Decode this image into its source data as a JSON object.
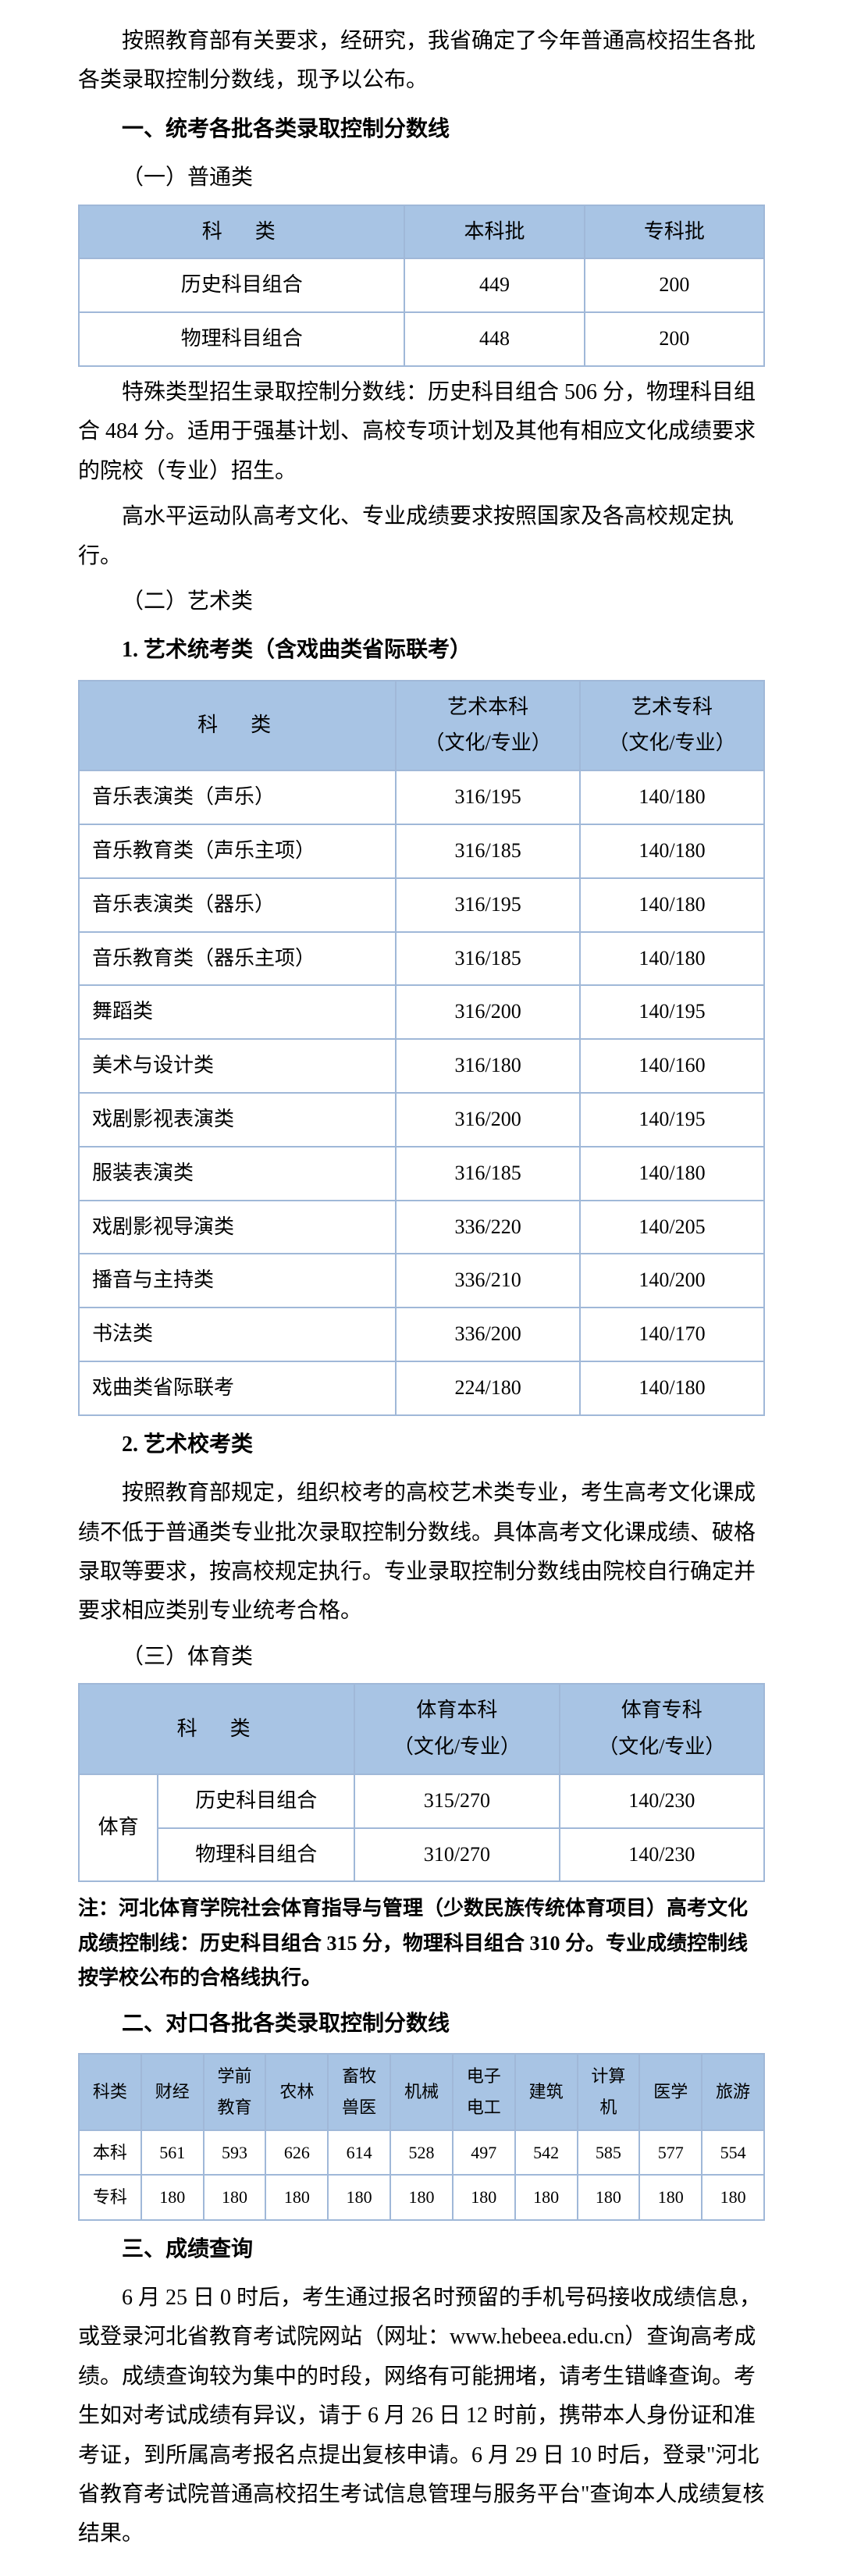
{
  "intro": "按照教育部有关要求，经研究，我省确定了今年普通高校招生各批各类录取控制分数线，现予以公布。",
  "h1": "一、统考各批各类录取控制分数线",
  "s1_1": "（一）普通类",
  "t1": {
    "h": [
      "科　类",
      "本科批",
      "专科批"
    ],
    "r": [
      [
        "历史科目组合",
        "449",
        "200"
      ],
      [
        "物理科目组合",
        "448",
        "200"
      ]
    ]
  },
  "p1_1": "特殊类型招生录取控制分数线：历史科目组合 506 分，物理科目组合 484 分。适用于强基计划、高校专项计划及其他有相应文化成绩要求的院校（专业）招生。",
  "p1_2": "高水平运动队高考文化、专业成绩要求按照国家及各高校规定执行。",
  "s1_2": "（二）艺术类",
  "s1_2_1": "1. 艺术统考类（含戏曲类省际联考）",
  "t2": {
    "h": [
      "科　类",
      "艺术本科\n（文化/专业）",
      "艺术专科\n（文化/专业）"
    ],
    "r": [
      [
        "音乐表演类（声乐）",
        "316/195",
        "140/180"
      ],
      [
        "音乐教育类（声乐主项）",
        "316/185",
        "140/180"
      ],
      [
        "音乐表演类（器乐）",
        "316/195",
        "140/180"
      ],
      [
        "音乐教育类（器乐主项）",
        "316/185",
        "140/180"
      ],
      [
        "舞蹈类",
        "316/200",
        "140/195"
      ],
      [
        "美术与设计类",
        "316/180",
        "140/160"
      ],
      [
        "戏剧影视表演类",
        "316/200",
        "140/195"
      ],
      [
        "服装表演类",
        "316/185",
        "140/180"
      ],
      [
        "戏剧影视导演类",
        "336/220",
        "140/205"
      ],
      [
        "播音与主持类",
        "336/210",
        "140/200"
      ],
      [
        "书法类",
        "336/200",
        "140/170"
      ],
      [
        "戏曲类省际联考",
        "224/180",
        "140/180"
      ]
    ]
  },
  "s1_2_2": "2. 艺术校考类",
  "p2_1": "按照教育部规定，组织校考的高校艺术类专业，考生高考文化课成绩不低于普通类专业批次录取控制分数线。具体高考文化课成绩、破格录取等要求，按高校规定执行。专业录取控制分数线由院校自行确定并要求相应类别专业统考合格。",
  "s1_3": "（三）体育类",
  "t3": {
    "h": [
      "科　类",
      "体育本科\n（文化/专业）",
      "体育专科\n（文化/专业）"
    ],
    "r": [
      [
        "体育",
        "历史科目组合",
        "315/270",
        "140/230"
      ],
      [
        "",
        "物理科目组合",
        "310/270",
        "140/230"
      ]
    ]
  },
  "note3": "注：河北体育学院社会体育指导与管理（少数民族传统体育项目）高考文化成绩控制线：历史科目组合 315 分，物理科目组合 310 分。专业成绩控制线按学校公布的合格线执行。",
  "h2": "二、对口各批各类录取控制分数线",
  "t4": {
    "h": [
      "科类",
      "财经",
      "学前\n教育",
      "农林",
      "畜牧\n兽医",
      "机械",
      "电子\n电工",
      "建筑",
      "计算\n机",
      "医学",
      "旅游"
    ],
    "r": [
      [
        "本科",
        "561",
        "593",
        "626",
        "614",
        "528",
        "497",
        "542",
        "585",
        "577",
        "554"
      ],
      [
        "专科",
        "180",
        "180",
        "180",
        "180",
        "180",
        "180",
        "180",
        "180",
        "180",
        "180"
      ]
    ]
  },
  "h3": "三、成绩查询",
  "p3": "6 月 25 日 0 时后，考生通过报名时预留的手机号码接收成绩信息，或登录河北省教育考试院网站（网址：www.hebeea.edu.cn）查询高考成绩。成绩查询较为集中的时段，网络有可能拥堵，请考生错峰查询。考生如对考试成绩有异议，请于 6 月 26 日 12 时前，携带本人身份证和准考证，到所属高考报名点提出复核申请。6 月 29 日 10 时后，登录\"河北省教育考试院普通高校招生考试信息管理与服务平台\"查询本人成绩复核结果。"
}
